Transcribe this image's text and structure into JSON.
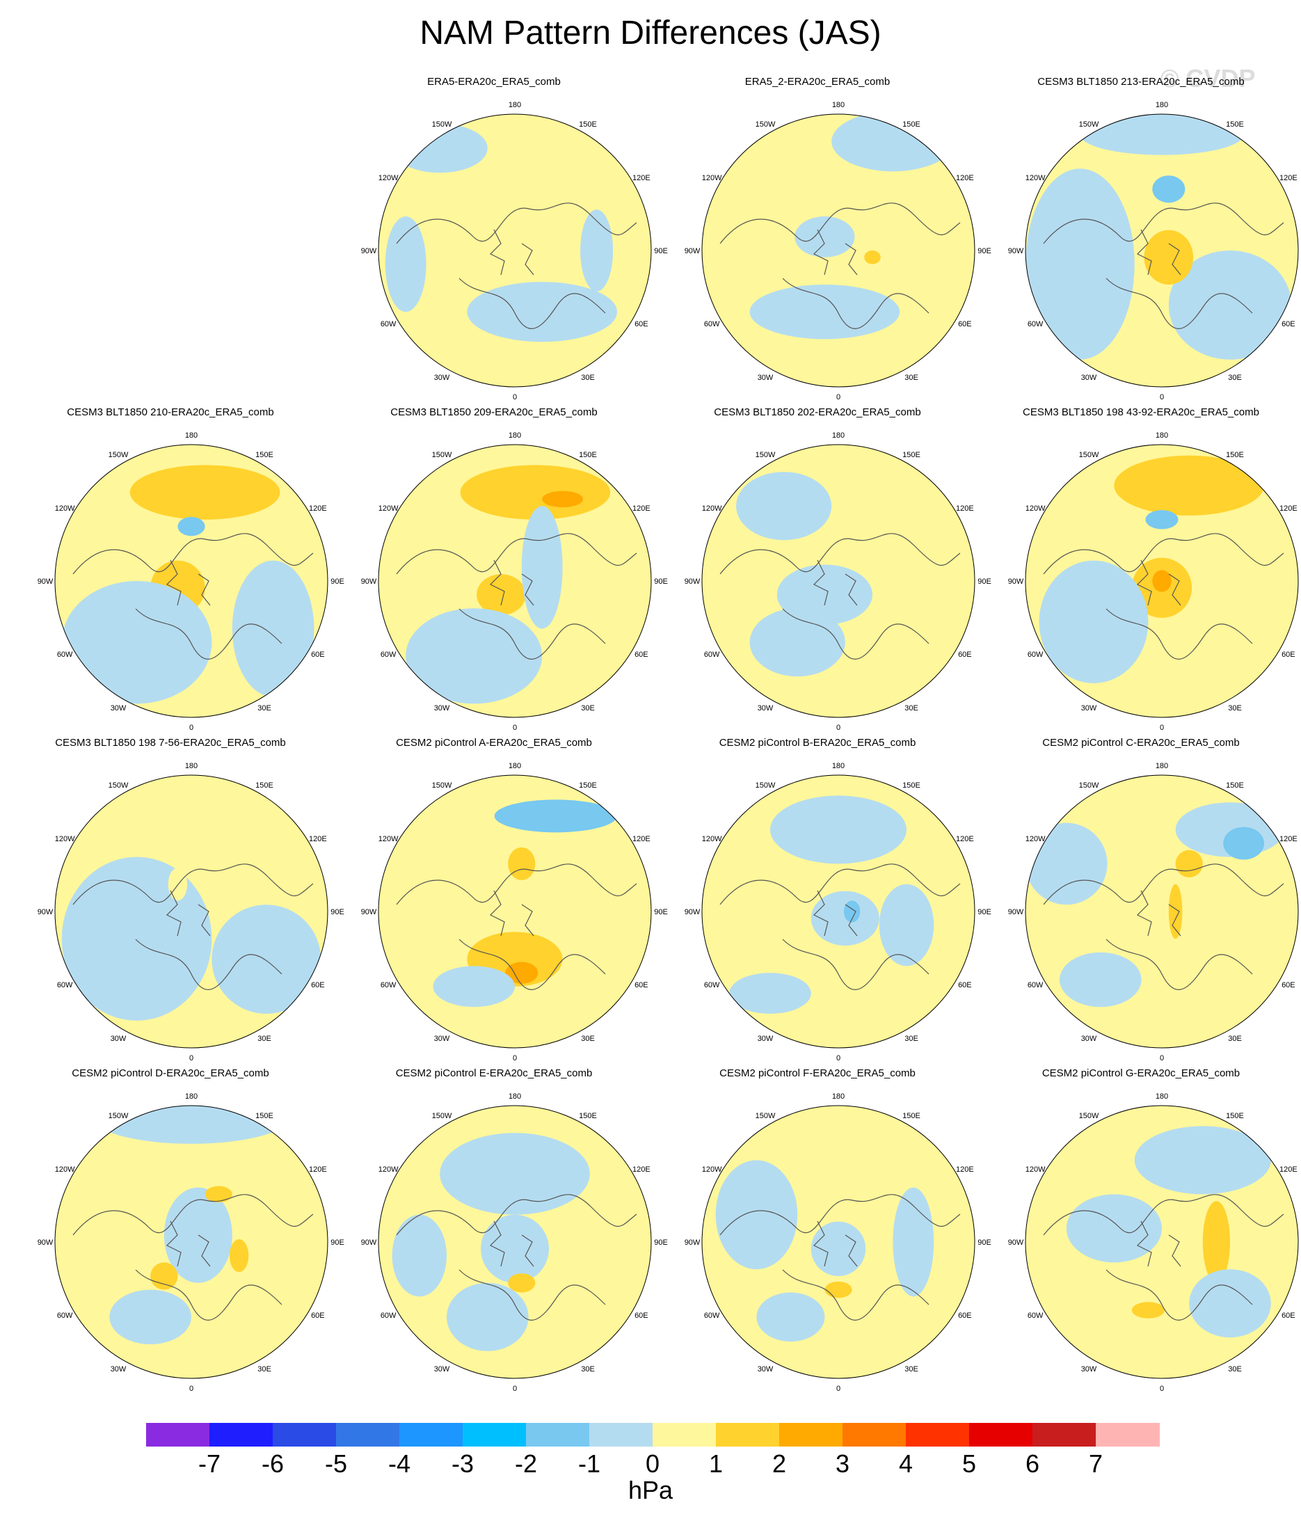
{
  "figure": {
    "title": "NAM Pattern Differences (JAS)",
    "watermark": "© CVDP",
    "units": "hPa"
  },
  "lon_labels": [
    "180",
    "150E",
    "120E",
    "90E",
    "60E",
    "30E",
    "0",
    "30W",
    "60W",
    "90W",
    "120W",
    "150W"
  ],
  "panels": [
    {
      "title": "ERA5-ERA20c_ERA5_comb"
    },
    {
      "title": "ERA5_2-ERA20c_ERA5_comb"
    },
    {
      "title": "CESM3 BLT1850 213-ERA20c_ERA5_comb"
    },
    {
      "title": "CESM3 BLT1850 210-ERA20c_ERA5_comb"
    },
    {
      "title": "CESM3 BLT1850 209-ERA20c_ERA5_comb"
    },
    {
      "title": "CESM3 BLT1850 202-ERA20c_ERA5_comb"
    },
    {
      "title": "CESM3 BLT1850 198 43-92-ERA20c_ERA5_comb"
    },
    {
      "title": "CESM3 BLT1850 198 7-56-ERA20c_ERA5_comb"
    },
    {
      "title": "CESM2 piControl A-ERA20c_ERA5_comb"
    },
    {
      "title": "CESM2 piControl B-ERA20c_ERA5_comb"
    },
    {
      "title": "CESM2 piControl C-ERA20c_ERA5_comb"
    },
    {
      "title": "CESM2 piControl D-ERA20c_ERA5_comb"
    },
    {
      "title": "CESM2 piControl E-ERA20c_ERA5_comb"
    },
    {
      "title": "CESM2 piControl F-ERA20c_ERA5_comb"
    },
    {
      "title": "CESM2 piControl G-ERA20c_ERA5_comb"
    }
  ],
  "colorbar": {
    "colors": [
      "#8a2be2",
      "#1e1eff",
      "#2a4be6",
      "#3277e6",
      "#1e96ff",
      "#00bfff",
      "#78c8f0",
      "#b4dcf0",
      "#fff79b",
      "#ffd22d",
      "#ffaa00",
      "#ff7800",
      "#ff3200",
      "#e60000",
      "#c81e1e",
      "#ffb4b4"
    ],
    "ticks": [
      "-7",
      "-6",
      "-5",
      "-4",
      "-3",
      "-2",
      "-1",
      "0",
      "1",
      "2",
      "3",
      "4",
      "5",
      "6",
      "7"
    ]
  },
  "map_colors": {
    "positive_light": "#fff79b",
    "positive_mid": "#ffd22d",
    "positive_strong": "#ffaa00",
    "negative_light": "#b4dcf0",
    "negative_mid": "#78c8f0",
    "coastline": "#555555"
  }
}
